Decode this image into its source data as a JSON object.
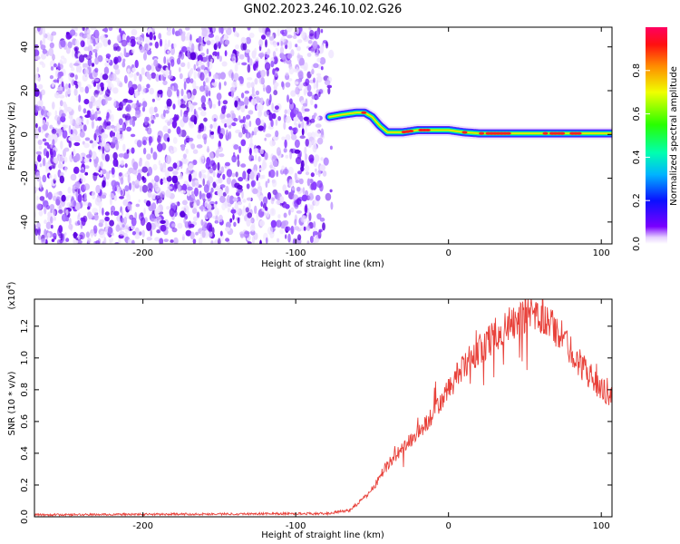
{
  "title": "GN02.2023.246.10.02.G26",
  "chart_data": [
    {
      "type": "heatmap",
      "name": "spectrogram",
      "xlabel": "Height of straight line (km)",
      "ylabel": "Frequency (Hz)",
      "xlim": [
        -271,
        107
      ],
      "ylim": [
        -50,
        49
      ],
      "xticks": [
        -200,
        -100,
        0,
        100
      ],
      "yticks": [
        -40,
        -20,
        0,
        20,
        40
      ],
      "noise_region_x": [
        -271,
        -75
      ],
      "track": {
        "x": [
          -78,
          -70,
          -60,
          -55,
          -50,
          -45,
          -40,
          -30,
          -20,
          -10,
          0,
          10,
          20,
          40,
          60,
          80,
          100,
          107
        ],
        "y": [
          8,
          9,
          10,
          10,
          8,
          4,
          1,
          1,
          2,
          2,
          2,
          1,
          0.5,
          0.5,
          0.5,
          0.5,
          0.5,
          0.5
        ]
      },
      "colorbar": {
        "label": "Normalized spectral amplitude",
        "range": [
          0,
          1
        ],
        "ticks": [
          "0.0",
          "0.2",
          "0.4",
          "0.6",
          "0.8"
        ],
        "colormap": "gist_rainbow"
      }
    },
    {
      "type": "line",
      "name": "snr",
      "xlabel": "Height of straight line (km)",
      "ylabel": "SNR (10 * v/v)",
      "yscale_label": "(x10",
      "yscale_exp": "4",
      "yscale_close": ")",
      "xlim": [
        -271,
        107
      ],
      "ylim": [
        0,
        1.37
      ],
      "xticks": [
        -200,
        -100,
        0,
        100
      ],
      "yticks": [
        "0.0",
        "0.2",
        "0.4",
        "0.6",
        "0.8",
        "1.0",
        "1.2"
      ],
      "line_color": "#e8413a",
      "envelope": {
        "x": [
          -271,
          -100,
          -80,
          -65,
          -55,
          -48,
          -42,
          -35,
          -25,
          -15,
          -5,
          5,
          15,
          25,
          35,
          45,
          55,
          65,
          75,
          85,
          95,
          107
        ],
        "y": [
          0.012,
          0.02,
          0.02,
          0.04,
          0.12,
          0.2,
          0.3,
          0.38,
          0.48,
          0.58,
          0.72,
          0.88,
          1.0,
          1.1,
          1.18,
          1.24,
          1.26,
          1.24,
          1.12,
          0.98,
          0.86,
          0.74
        ]
      }
    }
  ]
}
